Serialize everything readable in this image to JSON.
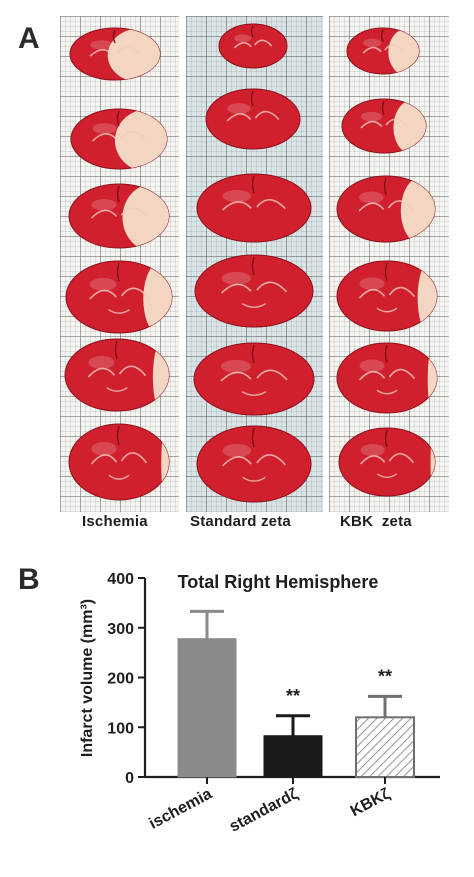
{
  "panel_a": {
    "letter": "A",
    "groups": [
      {
        "label": "Ischemia",
        "slices": 6
      },
      {
        "label": "Standard zeta",
        "slices": 6
      },
      {
        "label": "KBK  zeta",
        "slices": 6
      }
    ],
    "colors": {
      "viable_tissue": "#d0202e",
      "infarct_tissue": "#f2d6c1",
      "grid_paper": "#f4f4f1"
    }
  },
  "panel_b": {
    "letter": "B",
    "significance_marks": [
      "",
      "**",
      "**"
    ]
  },
  "chart_data": {
    "type": "bar",
    "title": "Total Right Hemisphere",
    "ylabel": "Infarct volume (mm³)",
    "xlabel": "",
    "categories": [
      "ischemia",
      "standardζ",
      "KBKζ"
    ],
    "values": [
      278,
      83,
      120
    ],
    "error": [
      55,
      40,
      42
    ],
    "ylim": [
      0,
      400
    ],
    "yticks": [
      0,
      100,
      200,
      300,
      400
    ],
    "bar_styles": [
      "solid gray",
      "solid black",
      "diagonal hatch"
    ],
    "colors": [
      "#8a8a8a",
      "#1a1a1a",
      "#ffffff"
    ],
    "grid": false
  }
}
